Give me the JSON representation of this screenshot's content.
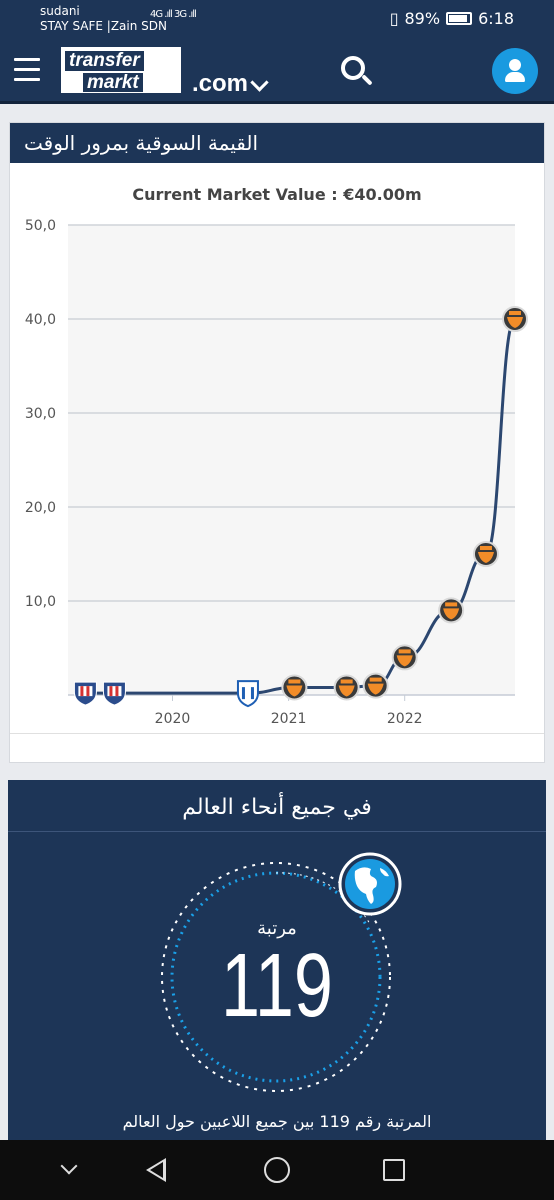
{
  "status_bar": {
    "carrier1": "sudani",
    "carrier2": "STAY SAFE |Zain SDN",
    "signal": "4G .ıll 3G .ıll",
    "battery": "89%",
    "time": "6:18"
  },
  "header": {
    "logo_line1": "transfer",
    "logo_line2": "markt",
    "domain_suffix": ".com",
    "icons": [
      "menu-icon",
      "chevron-down-icon",
      "search-icon",
      "user-icon"
    ]
  },
  "market_value": {
    "title": "القيمة السوقية بمرور الوقت",
    "subtitle": "Current Market Value : €40.00m"
  },
  "chart_data": {
    "type": "line",
    "title": "Current Market Value : €40.00m",
    "x_ticks": [
      "2020",
      "2021",
      "2022"
    ],
    "y_ticks": [
      "50,0",
      "40,0",
      "30,0",
      "20,0",
      "10,0"
    ],
    "ylim": [
      0,
      50
    ],
    "xlim": [
      2019.1,
      2022.95
    ],
    "grid": true,
    "series": [
      {
        "x": [
          2019.25,
          2019.5,
          2020.65,
          2021.05,
          2021.5,
          2021.75,
          2022.0,
          2022.4,
          2022.7,
          2022.95
        ],
        "y": [
          0.2,
          0.2,
          0.2,
          0.8,
          0.8,
          1.0,
          4.0,
          9.0,
          15.0,
          40.0
        ],
        "club": [
          "club-a",
          "club-a",
          "club-b",
          "club-c",
          "club-c",
          "club-c",
          "club-c",
          "club-c",
          "club-c",
          "club-c"
        ]
      }
    ],
    "colors": {
      "line": "#2c4770",
      "grid": "#cfd3d8",
      "plot_bg": "#f6f6f6"
    }
  },
  "worldwide": {
    "title": "في جميع أنحاء العالم",
    "rank_label": "مرتبة",
    "rank_value": "119",
    "caption": "المرتبة رقم 119 بين جميع اللاعبين حول العالم",
    "globe_icon": "globe-icon"
  },
  "nav_bar": {
    "icons": [
      "chevron-down-icon",
      "back-icon",
      "home-icon",
      "recent-apps-icon"
    ]
  }
}
